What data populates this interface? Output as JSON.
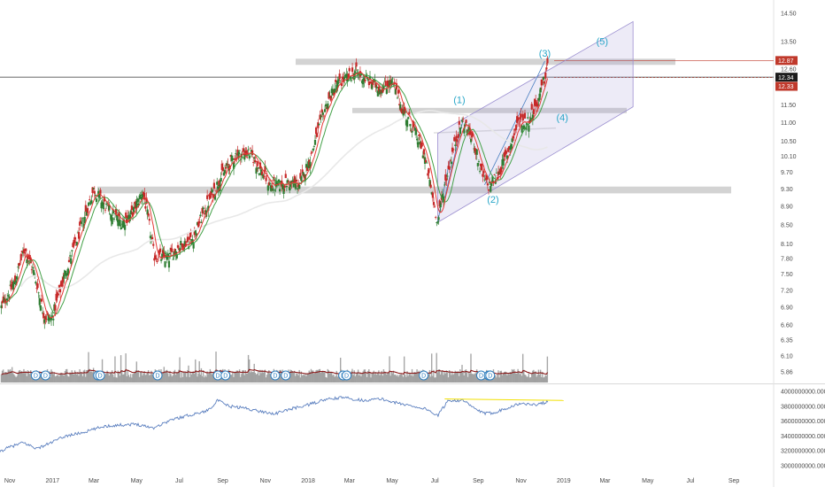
{
  "chart_data": [
    {
      "type": "candlestick",
      "title": "",
      "y_scale": "log",
      "y_ticks": [
        "14.50",
        "13.50",
        "12.60",
        "11.50",
        "11.00",
        "10.50",
        "10.10",
        "9.70",
        "9.30",
        "8.90",
        "8.50",
        "8.10",
        "7.80",
        "7.50",
        "7.20",
        "6.90",
        "6.60",
        "6.35",
        "6.10",
        "5.86"
      ],
      "x_ticks": [
        "Nov",
        "2017",
        "Mar",
        "May",
        "Jul",
        "Sep",
        "Nov",
        "2018",
        "Mar",
        "May",
        "Jul",
        "Sep",
        "Nov",
        "2019",
        "Mar",
        "May",
        "Jul",
        "Sep"
      ],
      "price_path": [
        {
          "date": "2016-10-20",
          "close": 6.9
        },
        {
          "date": "2016-11-08",
          "close": 7.35
        },
        {
          "date": "2016-11-22",
          "close": 8.0
        },
        {
          "date": "2016-12-05",
          "close": 7.55
        },
        {
          "date": "2016-12-20",
          "close": 6.75
        },
        {
          "date": "2016-12-31",
          "close": 6.7
        },
        {
          "date": "2017-01-20",
          "close": 7.55
        },
        {
          "date": "2017-02-10",
          "close": 8.4
        },
        {
          "date": "2017-03-01",
          "close": 9.3
        },
        {
          "date": "2017-03-20",
          "close": 8.85
        },
        {
          "date": "2017-04-10",
          "close": 8.55
        },
        {
          "date": "2017-04-25",
          "close": 8.75
        },
        {
          "date": "2017-05-10",
          "close": 9.25
        },
        {
          "date": "2017-05-18",
          "close": 8.6
        },
        {
          "date": "2017-05-26",
          "close": 7.85
        },
        {
          "date": "2017-06-15",
          "close": 7.8
        },
        {
          "date": "2017-07-01",
          "close": 8.05
        },
        {
          "date": "2017-07-20",
          "close": 8.2
        },
        {
          "date": "2017-08-10",
          "close": 8.95
        },
        {
          "date": "2017-08-30",
          "close": 9.6
        },
        {
          "date": "2017-09-20",
          "close": 10.15
        },
        {
          "date": "2017-10-10",
          "close": 10.2
        },
        {
          "date": "2017-10-25",
          "close": 9.75
        },
        {
          "date": "2017-11-10",
          "close": 9.35
        },
        {
          "date": "2017-12-01",
          "close": 9.45
        },
        {
          "date": "2017-12-20",
          "close": 9.4
        },
        {
          "date": "2018-01-05",
          "close": 10.1
        },
        {
          "date": "2018-01-25",
          "close": 11.4
        },
        {
          "date": "2018-02-10",
          "close": 12.1
        },
        {
          "date": "2018-02-25",
          "close": 12.3
        },
        {
          "date": "2018-03-10",
          "close": 12.5
        },
        {
          "date": "2018-03-30",
          "close": 12.2
        },
        {
          "date": "2018-04-15",
          "close": 12.0
        },
        {
          "date": "2018-05-01",
          "close": 12.2
        },
        {
          "date": "2018-05-15",
          "close": 11.4
        },
        {
          "date": "2018-06-01",
          "close": 10.8
        },
        {
          "date": "2018-06-15",
          "close": 10.2
        },
        {
          "date": "2018-06-28",
          "close": 9.1
        },
        {
          "date": "2018-07-05",
          "close": 8.55
        },
        {
          "date": "2018-07-15",
          "close": 9.4
        },
        {
          "date": "2018-08-01",
          "close": 10.6
        },
        {
          "date": "2018-08-10",
          "close": 11.05
        },
        {
          "date": "2018-08-25",
          "close": 10.5
        },
        {
          "date": "2018-09-05",
          "close": 9.7
        },
        {
          "date": "2018-09-15",
          "close": 9.35
        },
        {
          "date": "2018-10-01",
          "close": 9.7
        },
        {
          "date": "2018-10-15",
          "close": 10.3
        },
        {
          "date": "2018-10-30",
          "close": 11.1
        },
        {
          "date": "2018-11-10",
          "close": 11.0
        },
        {
          "date": "2018-11-25",
          "close": 11.6
        },
        {
          "date": "2018-12-05",
          "close": 12.3
        },
        {
          "date": "2018-12-10",
          "close": 12.87
        }
      ],
      "horizontal_levels": [
        {
          "low": 9.2,
          "high": 9.36
        },
        {
          "low": 12.73,
          "high": 12.93
        },
        {
          "low": 11.3,
          "high": 11.42
        }
      ],
      "price_badges": [
        {
          "label": "12.87",
          "color": "#c0392b"
        },
        {
          "label": "12.34",
          "color": "#1c1c1c"
        },
        {
          "label": "12.33",
          "color": "#c0392b"
        }
      ],
      "wave_labels": [
        "(1)",
        "(2)",
        "(3)",
        "(4)",
        "(5)"
      ],
      "volume_markers": [
        "D",
        "D",
        "D",
        "D",
        "D",
        "D",
        "D",
        "D",
        "D",
        "D",
        "D",
        "D",
        "D",
        "D",
        "D"
      ],
      "colors": {
        "up": "#2e7d32",
        "down": "#c62828",
        "ema_fast": "#e53935",
        "ema_slow": "#43a047",
        "sma_long": "#e8e8e8",
        "volume": "#8a8a8a",
        "volume_ma": "#8b1a1a",
        "channel": "#9b8fd0",
        "levels": "#9e9e9e",
        "accent_wave": "#2aa7c9"
      }
    },
    {
      "type": "line",
      "title": "",
      "y_ticks": [
        "4000000000.000",
        "3800000000.000",
        "3600000000.000",
        "3400000000.000",
        "3200000000.000",
        "3000000000.000"
      ],
      "y_range": [
        2950000000,
        4050000000
      ],
      "series_color": "#5b7fbf",
      "highlight_line_color": "#f2e000",
      "points": [
        {
          "date": "2016-10-15",
          "value": 3180000000
        },
        {
          "date": "2016-11-01",
          "value": 3250000000
        },
        {
          "date": "2016-11-20",
          "value": 3310000000
        },
        {
          "date": "2016-12-10",
          "value": 3230000000
        },
        {
          "date": "2016-12-25",
          "value": 3290000000
        },
        {
          "date": "2017-01-20",
          "value": 3400000000
        },
        {
          "date": "2017-02-15",
          "value": 3450000000
        },
        {
          "date": "2017-03-15",
          "value": 3530000000
        },
        {
          "date": "2017-04-10",
          "value": 3550000000
        },
        {
          "date": "2017-05-01",
          "value": 3560000000
        },
        {
          "date": "2017-05-25",
          "value": 3510000000
        },
        {
          "date": "2017-06-20",
          "value": 3620000000
        },
        {
          "date": "2017-07-15",
          "value": 3680000000
        },
        {
          "date": "2017-08-10",
          "value": 3740000000
        },
        {
          "date": "2017-08-25",
          "value": 3880000000
        },
        {
          "date": "2017-09-10",
          "value": 3800000000
        },
        {
          "date": "2017-10-01",
          "value": 3780000000
        },
        {
          "date": "2017-10-25",
          "value": 3730000000
        },
        {
          "date": "2017-11-15",
          "value": 3700000000
        },
        {
          "date": "2017-12-05",
          "value": 3760000000
        },
        {
          "date": "2018-01-01",
          "value": 3820000000
        },
        {
          "date": "2018-01-25",
          "value": 3890000000
        },
        {
          "date": "2018-02-20",
          "value": 3920000000
        },
        {
          "date": "2018-03-20",
          "value": 3880000000
        },
        {
          "date": "2018-04-15",
          "value": 3900000000
        },
        {
          "date": "2018-05-10",
          "value": 3840000000
        },
        {
          "date": "2018-06-01",
          "value": 3800000000
        },
        {
          "date": "2018-06-20",
          "value": 3760000000
        },
        {
          "date": "2018-07-05",
          "value": 3670000000
        },
        {
          "date": "2018-07-20",
          "value": 3880000000
        },
        {
          "date": "2018-08-10",
          "value": 3880000000
        },
        {
          "date": "2018-08-25",
          "value": 3780000000
        },
        {
          "date": "2018-09-10",
          "value": 3700000000
        },
        {
          "date": "2018-09-25",
          "value": 3720000000
        },
        {
          "date": "2018-10-15",
          "value": 3790000000
        },
        {
          "date": "2018-11-01",
          "value": 3840000000
        },
        {
          "date": "2018-11-20",
          "value": 3820000000
        },
        {
          "date": "2018-12-10",
          "value": 3860000000
        }
      ]
    }
  ]
}
